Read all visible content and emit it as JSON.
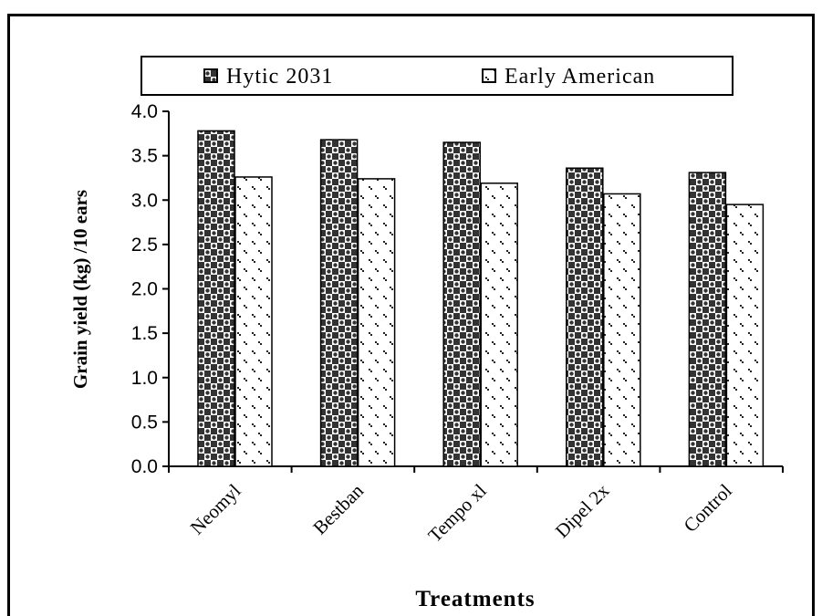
{
  "chart_data": {
    "type": "bar",
    "title": "",
    "xlabel": "Treatments",
    "ylabel": "Grain yield (kg) /10 ears",
    "ylim": [
      0,
      4.0
    ],
    "yticks": [
      "0.0",
      "0.5",
      "1.0",
      "1.5",
      "2.0",
      "2.5",
      "3.0",
      "3.5",
      "4.0"
    ],
    "categories": [
      "Neomyl",
      "Bestban",
      "Tempo xl",
      "Dipel 2x",
      "Control"
    ],
    "series": [
      {
        "name": "Hytic 2031",
        "values": [
          3.78,
          3.68,
          3.65,
          3.36,
          3.31
        ],
        "pattern": "checker"
      },
      {
        "name": "Early American",
        "values": [
          3.26,
          3.24,
          3.19,
          3.07,
          2.95
        ],
        "pattern": "dots"
      }
    ],
    "legend_position": "top",
    "grid": false,
    "colors": {
      "ink": "#000000",
      "dark": "#333333",
      "background": "#ffffff"
    }
  }
}
